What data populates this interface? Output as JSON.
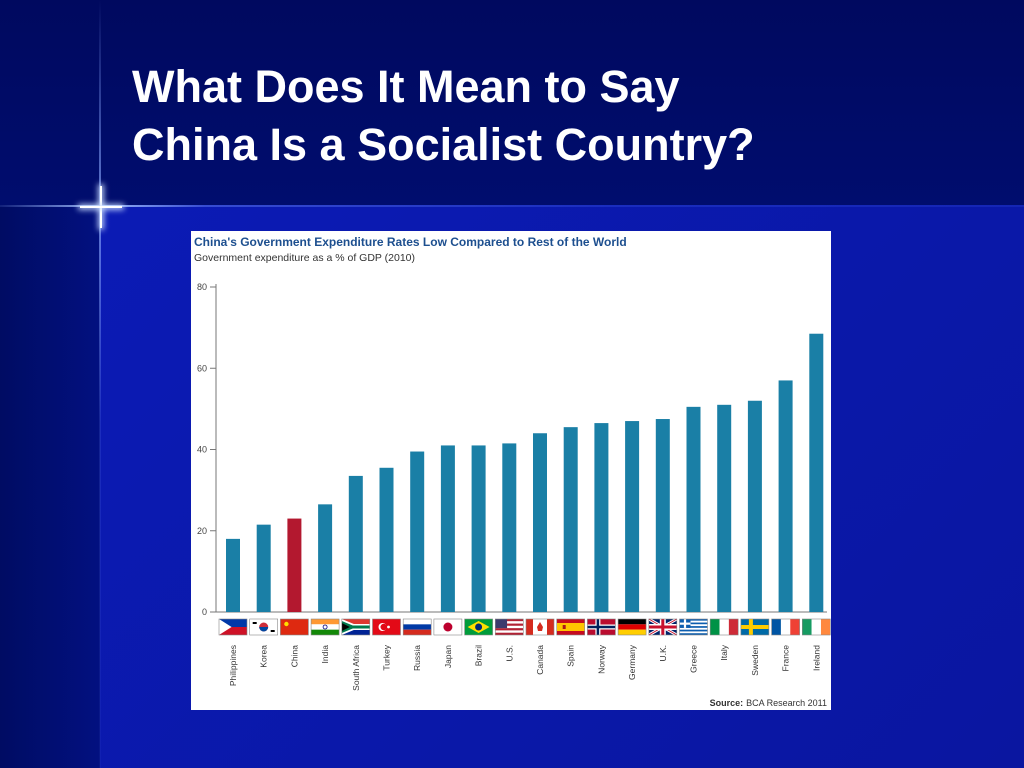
{
  "slide": {
    "title_line1": "What Does It Mean to Say",
    "title_line2": "China Is a Socialist Country?"
  },
  "colors": {
    "bar": "#1a7fa6",
    "highlight_bar": "#b3182f",
    "title_text": "#ffffff",
    "chart_title": "#1d4f8f"
  },
  "chart_data": {
    "type": "bar",
    "title": "China's Government Expenditure Rates Low Compared to Rest of the World",
    "subtitle": "Government expenditure as a % of GDP (2010)",
    "source_label": "Source:",
    "source": "BCA Research 2011",
    "categories": [
      "Philippines",
      "Korea",
      "China",
      "India",
      "South Africa",
      "Turkey",
      "Russia",
      "Japan",
      "Brazil",
      "U.S.",
      "Canada",
      "Spain",
      "Norway",
      "Germany",
      "U.K.",
      "Greece",
      "Italy",
      "Sweden",
      "France",
      "Ireland"
    ],
    "values": [
      18,
      21.5,
      23,
      26.5,
      33.5,
      35.5,
      39.5,
      41,
      41,
      41.5,
      44,
      45.5,
      46.5,
      47,
      47.5,
      50.5,
      51,
      52,
      57,
      68.5
    ],
    "highlight": "China",
    "yticks": [
      "0",
      "20",
      "40",
      "60",
      "80"
    ],
    "ylim": [
      0,
      80
    ],
    "grid": false,
    "flags": [
      "philippines-flag",
      "korea-flag",
      "china-flag",
      "india-flag",
      "south-africa-flag",
      "turkey-flag",
      "russia-flag",
      "japan-flag",
      "brazil-flag",
      "us-flag",
      "canada-flag",
      "spain-flag",
      "norway-flag",
      "germany-flag",
      "uk-flag",
      "greece-flag",
      "italy-flag",
      "sweden-flag",
      "france-flag",
      "ireland-flag"
    ]
  }
}
